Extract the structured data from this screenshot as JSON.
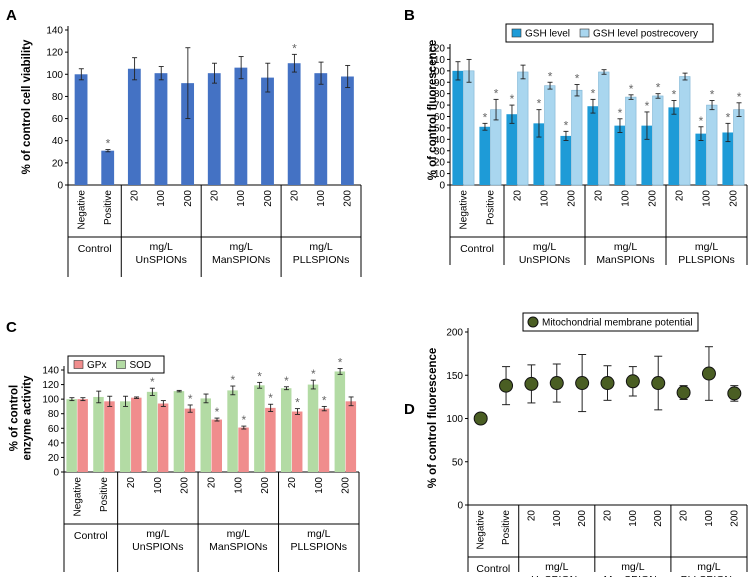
{
  "chart_data": [
    {
      "id": "A",
      "panel_label": "A",
      "type": "bar",
      "ylabel": "% of control cell viability",
      "ylim": [
        0,
        140
      ],
      "yticks": [
        0,
        20,
        40,
        60,
        80,
        100,
        120,
        140
      ],
      "categories": [
        "Negative",
        "Positive",
        "20",
        "100",
        "200",
        "20",
        "100",
        "200",
        "20",
        "100",
        "200"
      ],
      "groups": [
        {
          "start": 0,
          "end": 1,
          "lines": [
            "Control"
          ]
        },
        {
          "start": 2,
          "end": 4,
          "lines": [
            "mg/L",
            "UnSPIONs"
          ]
        },
        {
          "start": 5,
          "end": 7,
          "lines": [
            "mg/L",
            "ManSPIONs"
          ]
        },
        {
          "start": 8,
          "end": 10,
          "lines": [
            "mg/L",
            "PLLSPIONs"
          ]
        }
      ],
      "series": [
        {
          "name": "Cell viability",
          "color": "#4472c4",
          "values": [
            100,
            31,
            105,
            101,
            92,
            101,
            106,
            97,
            110,
            101,
            98
          ],
          "errors": [
            5,
            1,
            10,
            6,
            32,
            9,
            10,
            13,
            8,
            10,
            10
          ],
          "sig": [
            false,
            true,
            false,
            false,
            false,
            false,
            false,
            false,
            true,
            false,
            false
          ]
        }
      ],
      "legend": []
    },
    {
      "id": "B",
      "panel_label": "B",
      "type": "bar",
      "ylabel": "% of control fluorescence",
      "ylim": [
        0,
        120
      ],
      "yticks": [
        0,
        10,
        20,
        30,
        40,
        50,
        60,
        70,
        80,
        90,
        100,
        110,
        120
      ],
      "categories": [
        "Negative",
        "Positive",
        "20",
        "100",
        "200",
        "20",
        "100",
        "200",
        "20",
        "100",
        "200"
      ],
      "groups": [
        {
          "start": 0,
          "end": 1,
          "lines": [
            "Control"
          ]
        },
        {
          "start": 2,
          "end": 4,
          "lines": [
            "mg/L",
            "UnSPIONs"
          ]
        },
        {
          "start": 5,
          "end": 7,
          "lines": [
            "mg/L",
            "ManSPIONs"
          ]
        },
        {
          "start": 8,
          "end": 10,
          "lines": [
            "mg/L",
            "PLLSPIONs"
          ]
        }
      ],
      "series": [
        {
          "name": "GSH level",
          "color": "#1e9bd7",
          "values": [
            100,
            51,
            62,
            54,
            43,
            69,
            52,
            52,
            68,
            45,
            46
          ],
          "errors": [
            8,
            3,
            8,
            12,
            4,
            6,
            6,
            12,
            6,
            6,
            8
          ],
          "sig": [
            false,
            true,
            true,
            true,
            true,
            true,
            true,
            true,
            true,
            true,
            true
          ]
        },
        {
          "name": "GSH level postrecovery",
          "color": "#a9d6ef",
          "values": [
            100,
            66,
            99,
            87,
            83,
            99,
            77,
            78,
            95,
            70,
            66
          ],
          "errors": [
            10,
            9,
            6,
            3,
            5,
            2,
            2,
            2,
            3,
            4,
            6
          ],
          "sig": [
            false,
            true,
            false,
            true,
            true,
            false,
            true,
            true,
            false,
            true,
            true
          ]
        }
      ],
      "legend": [
        "GSH level",
        "GSH level postrecovery"
      ]
    },
    {
      "id": "C",
      "panel_label": "C",
      "type": "bar",
      "ylabel": "% of control enzyme activity",
      "ylabel_lines": [
        "% of control",
        "enzyme activity"
      ],
      "ylim": [
        0,
        140
      ],
      "yticks": [
        0,
        20,
        40,
        60,
        80,
        100,
        120,
        140
      ],
      "categories": [
        "Negative",
        "Positive",
        "20",
        "100",
        "200",
        "20",
        "100",
        "200",
        "20",
        "100",
        "200"
      ],
      "groups": [
        {
          "start": 0,
          "end": 1,
          "lines": [
            "Control"
          ]
        },
        {
          "start": 2,
          "end": 4,
          "lines": [
            "mg/L",
            "UnSPIONs"
          ]
        },
        {
          "start": 5,
          "end": 7,
          "lines": [
            "mg/L",
            "ManSPIONs"
          ]
        },
        {
          "start": 8,
          "end": 10,
          "lines": [
            "mg/L",
            "PLLSPIONs"
          ]
        }
      ],
      "series": [
        {
          "name": "SOD",
          "color": "#b3dba4",
          "values": [
            100,
            103,
            97,
            110,
            111,
            101,
            112,
            119,
            115,
            120,
            138
          ],
          "errors": [
            2,
            8,
            7,
            5,
            1,
            6,
            6,
            4,
            2,
            6,
            4
          ],
          "sig": [
            false,
            false,
            false,
            true,
            false,
            false,
            true,
            true,
            true,
            true,
            true
          ]
        },
        {
          "name": "GPx",
          "color": "#f08d8d",
          "values": [
            100,
            97,
            102,
            94,
            87,
            72,
            61,
            88,
            83,
            87,
            97
          ],
          "errors": [
            2,
            7,
            1,
            4,
            5,
            2,
            2,
            5,
            4,
            3,
            6
          ],
          "sig": [
            false,
            false,
            false,
            false,
            true,
            true,
            true,
            true,
            true,
            true,
            false
          ]
        }
      ],
      "legend": [
        "GPx",
        "SOD"
      ]
    },
    {
      "id": "D",
      "panel_label": "D",
      "type": "scatter",
      "ylabel": "% of control fluorescence",
      "ylim": [
        0,
        200
      ],
      "yticks": [
        0,
        50,
        100,
        150,
        200
      ],
      "categories": [
        "Negative",
        "Positive",
        "20",
        "100",
        "200",
        "20",
        "100",
        "200",
        "20",
        "100",
        "200"
      ],
      "groups": [
        {
          "start": 0,
          "end": 1,
          "lines": [
            "Control"
          ]
        },
        {
          "start": 2,
          "end": 4,
          "lines": [
            "mg/L",
            "UnSPIONs"
          ]
        },
        {
          "start": 5,
          "end": 7,
          "lines": [
            "mg/L",
            "ManSPIONs"
          ]
        },
        {
          "start": 8,
          "end": 10,
          "lines": [
            "mg/L",
            "PLLSPIONs"
          ]
        }
      ],
      "series": [
        {
          "name": "Mitochondrial membrane potential",
          "color": "#4a5e23",
          "values": [
            100,
            138,
            140,
            141,
            141,
            141,
            143,
            141,
            130,
            152,
            129
          ],
          "errors": [
            4,
            22,
            22,
            22,
            33,
            20,
            17,
            31,
            8,
            31,
            9
          ]
        }
      ],
      "legend": [
        "Mitochondrial membrane potential"
      ]
    }
  ],
  "significance_marker": "*"
}
